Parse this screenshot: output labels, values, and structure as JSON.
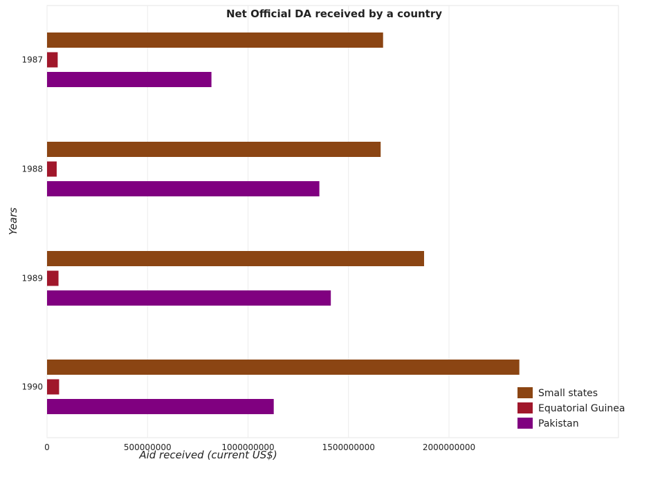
{
  "chart_data": {
    "type": "bar",
    "orientation": "horizontal",
    "title": "Net Official DA received by a country",
    "xlabel": "Aid received (current US$)",
    "ylabel": "Years",
    "categories": [
      "1987",
      "1988",
      "1989",
      "1990"
    ],
    "x_ticks": [
      0,
      500000000,
      1000000000,
      1500000000,
      2000000000
    ],
    "x_tick_labels": [
      "0",
      "500000000",
      "1000000000",
      "1500000000",
      "2000000000"
    ],
    "xlim": [
      0,
      2450000000
    ],
    "grid": true,
    "legend_position": "bottom-right",
    "series": [
      {
        "name": "Small states",
        "color": "#8B4513",
        "values": [
          1672000000,
          1660000000,
          1876000000,
          2350000000
        ]
      },
      {
        "name": "Equatorial Guinea",
        "color": "#A0172B",
        "values": [
          53000000,
          48000000,
          57000000,
          60000000
        ]
      },
      {
        "name": "Pakistan",
        "color": "#800080",
        "values": [
          818000000,
          1355000000,
          1412000000,
          1128000000
        ]
      }
    ]
  }
}
